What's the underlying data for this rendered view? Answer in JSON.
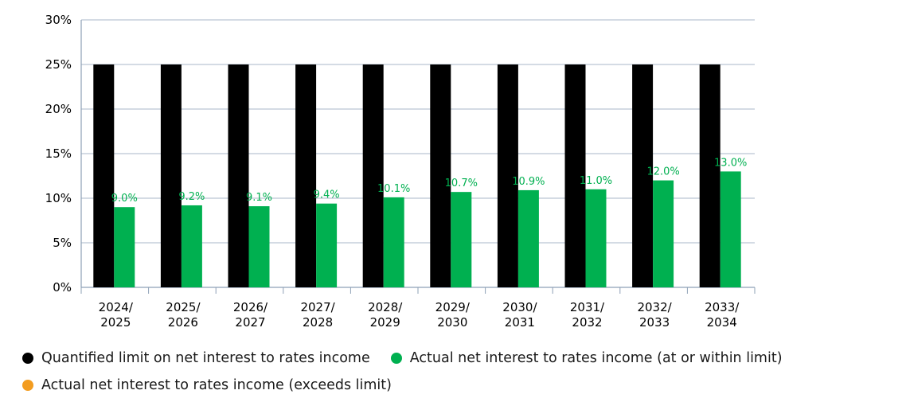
{
  "chart_data": {
    "type": "bar",
    "title": "",
    "xlabel": "",
    "ylabel": "",
    "ylim": [
      0,
      30
    ],
    "yticks": [
      "0%",
      "5%",
      "10%",
      "15%",
      "20%",
      "25%",
      "30%"
    ],
    "categories": [
      [
        "2024/",
        "2025"
      ],
      [
        "2025/",
        "2026"
      ],
      [
        "2026/",
        "2027"
      ],
      [
        "2027/",
        "2028"
      ],
      [
        "2028/",
        "2029"
      ],
      [
        "2029/",
        "2030"
      ],
      [
        "2030/",
        "2031"
      ],
      [
        "2031/",
        "2032"
      ],
      [
        "2032/",
        "2033"
      ],
      [
        "2033/",
        "2034"
      ]
    ],
    "series": [
      {
        "name": "Quantified limit on net interest to rates income",
        "color": "#000000",
        "values": [
          25,
          25,
          25,
          25,
          25,
          25,
          25,
          25,
          25,
          25
        ]
      },
      {
        "name": "Actual net interest to rates income (at or within limit)",
        "color": "#00b050",
        "values": [
          9.0,
          9.2,
          9.1,
          9.4,
          10.1,
          10.7,
          10.9,
          11.0,
          12.0,
          13.0
        ],
        "data_labels": [
          "9.0%",
          "9.2%",
          "9.1%",
          "9.4%",
          "10.1%",
          "10.7%",
          "10.9%",
          "11.0%",
          "12.0%",
          "13.0%"
        ]
      }
    ],
    "legend": {
      "placement": "bottom",
      "entries": [
        {
          "label": "Quantified limit on net interest to rates income",
          "color": "#000000"
        },
        {
          "label": "Actual net interest to rates income (at or within limit)",
          "color": "#00b050"
        },
        {
          "label": "Actual net interest to rates income (exceeds limit)",
          "color": "#f39c1f"
        }
      ]
    },
    "grid": true
  }
}
